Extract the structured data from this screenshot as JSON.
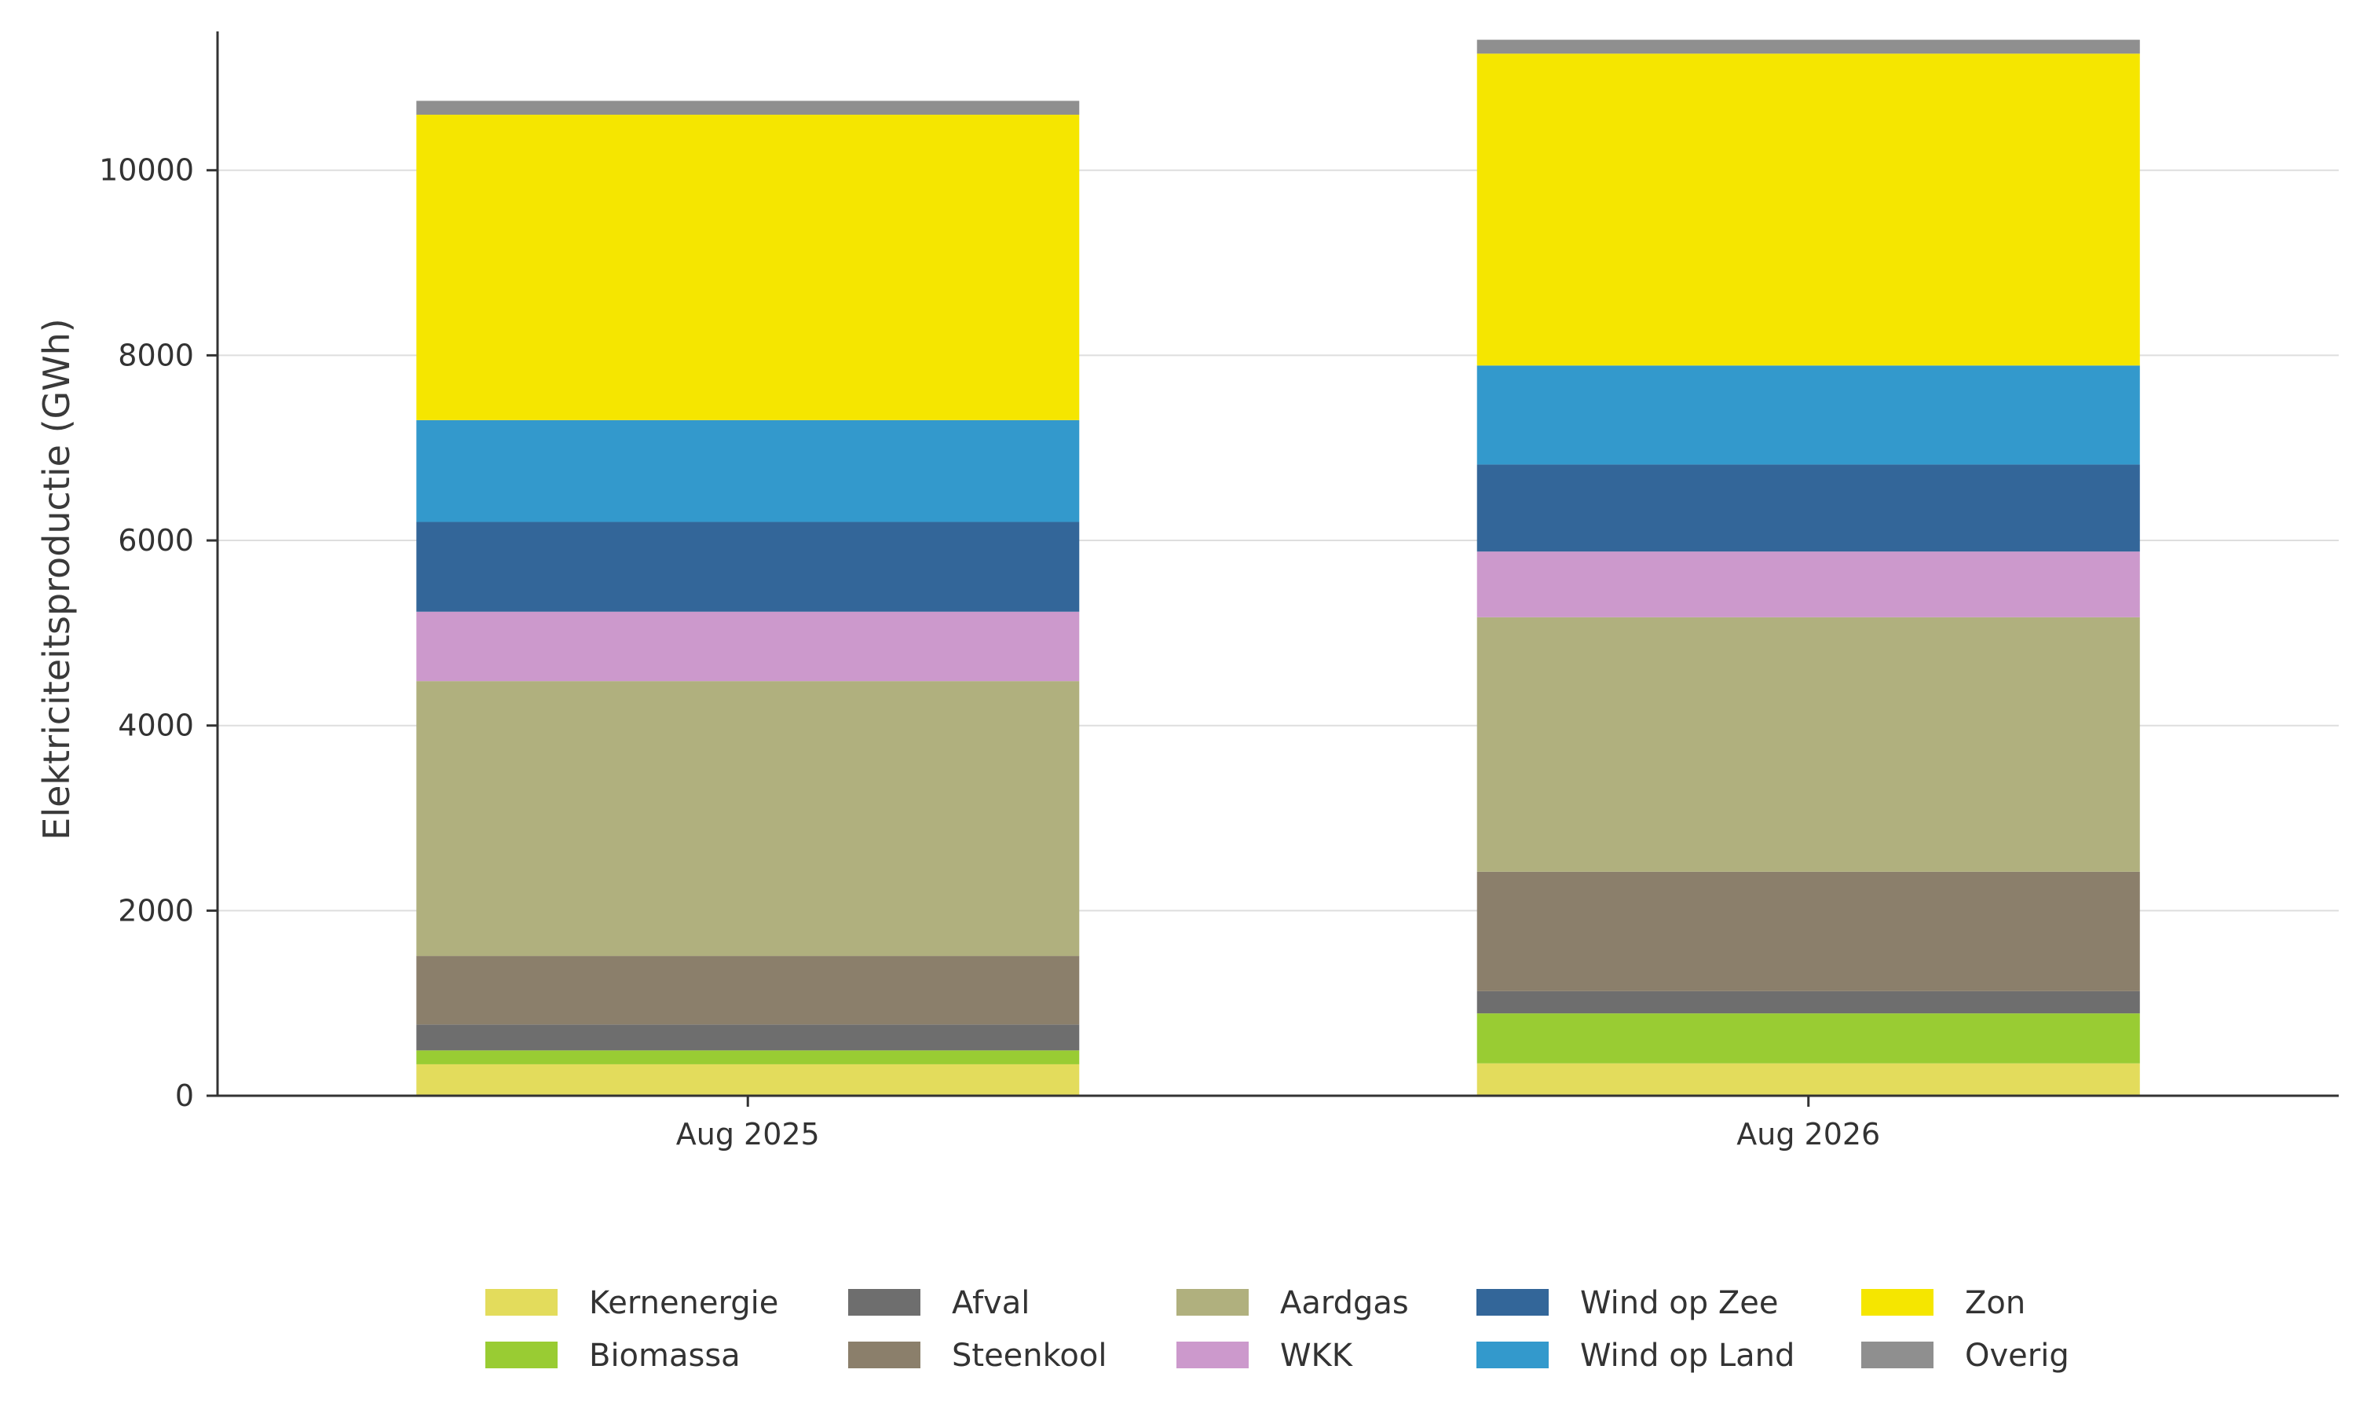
{
  "chart_data": {
    "type": "bar",
    "stacked": true,
    "title": "",
    "xlabel": "",
    "ylabel": "Elektriciteitsproductie (GWh)",
    "ylim": [
      0,
      11500
    ],
    "yticks": [
      0,
      2000,
      4000,
      6000,
      8000,
      10000
    ],
    "grid": "horizontal",
    "legend_position": "bottom",
    "categories": [
      "Aug 2025",
      "Aug 2026"
    ],
    "series": [
      {
        "name": "Kernenergie",
        "color": "#e3dc5c",
        "values": [
          340,
          350
        ]
      },
      {
        "name": "Biomassa",
        "color": "#99cc33",
        "values": [
          150,
          540
        ]
      },
      {
        "name": "Afval",
        "color": "#6e6e6e",
        "values": [
          280,
          240
        ]
      },
      {
        "name": "Steenkool",
        "color": "#8b7f6b",
        "values": [
          740,
          1290
        ]
      },
      {
        "name": "Aardgas",
        "color": "#b0b07e",
        "values": [
          2970,
          2750
        ]
      },
      {
        "name": "WKK",
        "color": "#cc99cc",
        "values": [
          750,
          710
        ]
      },
      {
        "name": "Wind op Zee",
        "color": "#336699",
        "values": [
          970,
          940
        ]
      },
      {
        "name": "Wind op Land",
        "color": "#3399cc",
        "values": [
          1100,
          1070
        ]
      },
      {
        "name": "Zon",
        "color": "#f5e600",
        "values": [
          3300,
          3370
        ]
      },
      {
        "name": "Overig",
        "color": "#8f8f8f",
        "values": [
          150,
          150
        ]
      }
    ]
  }
}
